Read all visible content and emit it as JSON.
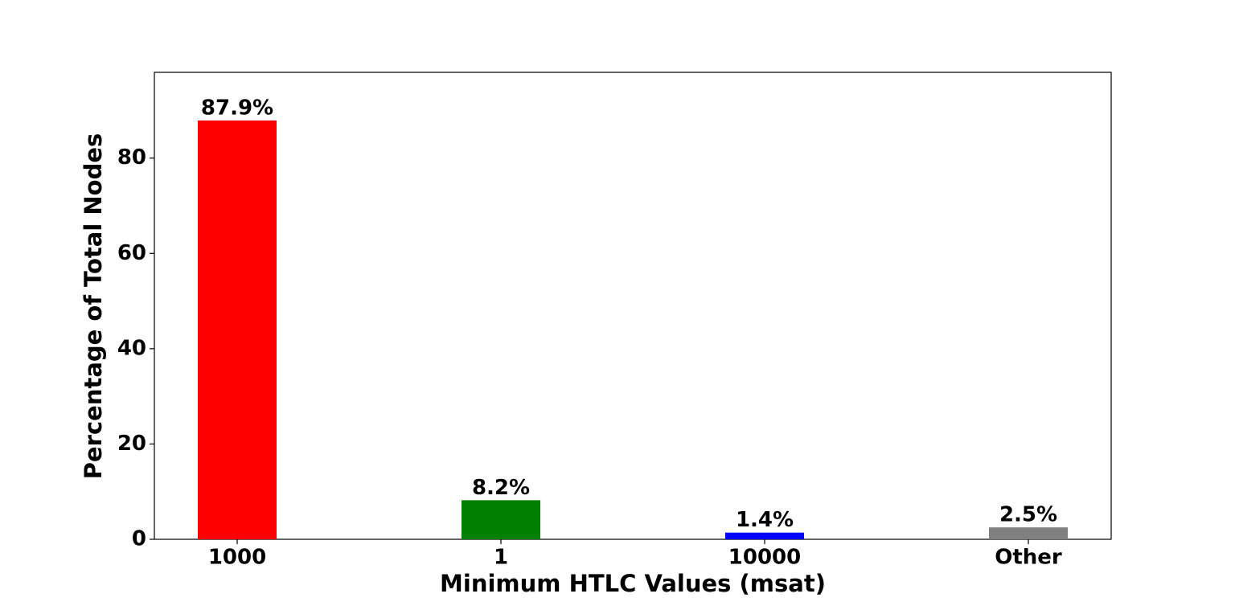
{
  "chart_data": {
    "type": "bar",
    "x_label": "Minimum HTLC Values (msat)",
    "y_label": "Percentage of Total Nodes",
    "categories": [
      "1000",
      "1",
      "10000",
      "Other"
    ],
    "values": [
      87.9,
      8.2,
      1.4,
      2.5
    ],
    "value_labels": [
      "87.9%",
      "8.2%",
      "1.4%",
      "2.5%"
    ],
    "colors": [
      "#ff0000",
      "#008000",
      "#0000ff",
      "#808080"
    ],
    "ylim": [
      0,
      98
    ],
    "yticks": [
      0,
      20,
      40,
      60,
      80
    ],
    "grid": false
  }
}
